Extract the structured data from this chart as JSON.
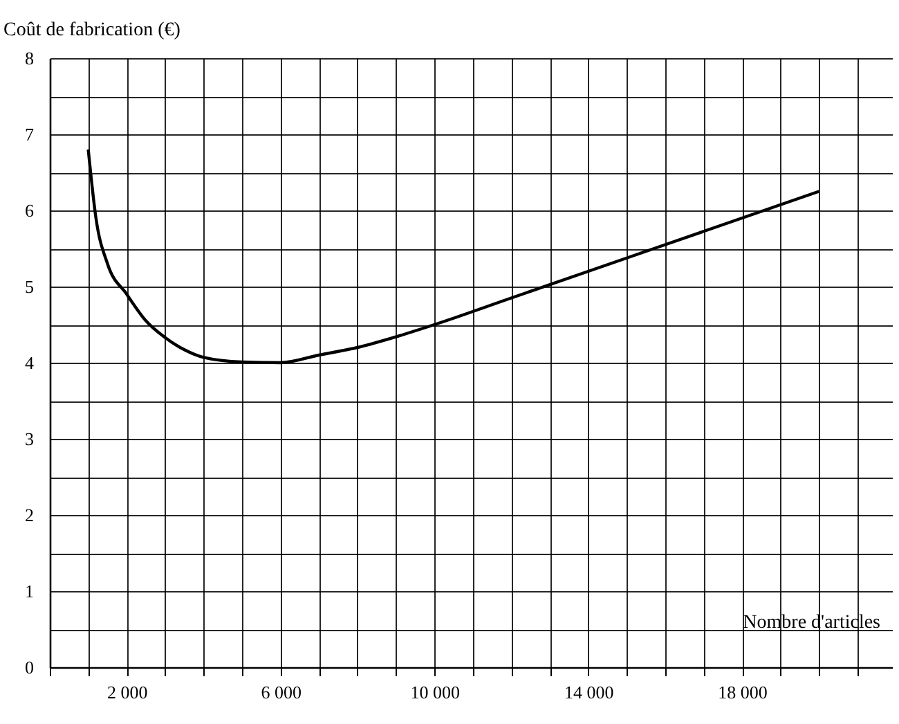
{
  "chart_data": {
    "type": "line",
    "xlabel": "Nombre d'articles",
    "ylabel": "Coût de fabrication (€)",
    "x": [
      1000,
      1200,
      1500,
      2000,
      2500,
      3000,
      3500,
      4000,
      5000,
      6000,
      7000,
      8000,
      9000,
      10000,
      12000,
      14000,
      16000,
      18000,
      20000
    ],
    "values": [
      6.8,
      5.9,
      5.3,
      4.9,
      4.55,
      4.33,
      4.17,
      4.07,
      4.01,
      4.0,
      4.1,
      4.2,
      4.34,
      4.5,
      4.85,
      5.2,
      5.55,
      5.9,
      6.25
    ],
    "color": "#000000",
    "xlim": [
      0,
      21900
    ],
    "ylim": [
      0,
      8
    ],
    "xticks": [
      {
        "value": 0,
        "label": null
      },
      {
        "value": 1000,
        "label": null
      },
      {
        "value": 2000,
        "label": "2 000"
      },
      {
        "value": 3000,
        "label": null
      },
      {
        "value": 4000,
        "label": null
      },
      {
        "value": 5000,
        "label": null
      },
      {
        "value": 6000,
        "label": "6 000"
      },
      {
        "value": 7000,
        "label": null
      },
      {
        "value": 8000,
        "label": null
      },
      {
        "value": 9000,
        "label": null
      },
      {
        "value": 10000,
        "label": "10 000"
      },
      {
        "value": 11000,
        "label": null
      },
      {
        "value": 12000,
        "label": null
      },
      {
        "value": 13000,
        "label": null
      },
      {
        "value": 14000,
        "label": "14 000"
      },
      {
        "value": 15000,
        "label": null
      },
      {
        "value": 16000,
        "label": null
      },
      {
        "value": 17000,
        "label": null
      },
      {
        "value": 18000,
        "label": "18 000"
      },
      {
        "value": 19000,
        "label": null
      },
      {
        "value": 20000,
        "label": null
      },
      {
        "value": 21000,
        "label": null
      }
    ],
    "yticks": [
      0,
      {
        "value": 0.5,
        "label": null
      },
      1,
      {
        "value": 1.5,
        "label": null
      },
      2,
      {
        "value": 2.5,
        "label": null
      },
      3,
      {
        "value": 3.5,
        "label": null
      },
      4,
      {
        "value": 4.5,
        "label": null
      },
      5,
      {
        "value": 5.5,
        "label": null
      },
      6,
      {
        "value": 6.5,
        "label": null
      },
      7,
      {
        "value": 7.5,
        "label": null
      },
      8
    ],
    "grid": true
  }
}
